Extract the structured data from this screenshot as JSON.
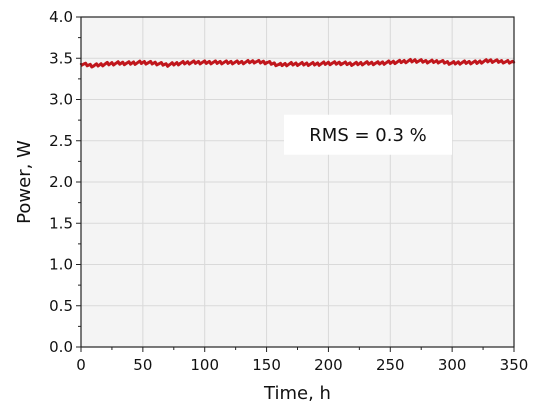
{
  "chart_data": {
    "type": "line",
    "title": "",
    "xlabel": "Time, h",
    "ylabel": "Power, W",
    "xlim": [
      0,
      350
    ],
    "ylim": [
      0.0,
      4.0
    ],
    "xticks": [
      "0",
      "50",
      "100",
      "150",
      "200",
      "250",
      "300",
      "350"
    ],
    "yticks": [
      "0.0",
      "0.5",
      "1.0",
      "1.5",
      "2.0",
      "2.5",
      "3.0",
      "3.5",
      "4.0"
    ],
    "grid": true,
    "annotation": "RMS = 0.3 %",
    "series": [
      {
        "color": "#c0161c",
        "x": [
          0,
          10,
          20,
          30,
          40,
          50,
          60,
          70,
          80,
          90,
          100,
          110,
          120,
          130,
          140,
          150,
          160,
          170,
          180,
          190,
          200,
          210,
          220,
          230,
          240,
          250,
          260,
          270,
          280,
          290,
          300,
          310,
          320,
          330,
          340,
          350
        ],
        "y": [
          3.43,
          3.41,
          3.43,
          3.44,
          3.44,
          3.45,
          3.44,
          3.42,
          3.44,
          3.45,
          3.45,
          3.45,
          3.45,
          3.45,
          3.46,
          3.45,
          3.42,
          3.43,
          3.43,
          3.43,
          3.44,
          3.44,
          3.43,
          3.44,
          3.44,
          3.45,
          3.46,
          3.47,
          3.46,
          3.46,
          3.44,
          3.45,
          3.45,
          3.47,
          3.46,
          3.45
        ]
      }
    ]
  },
  "colors": {
    "plot_background": "#f4f4f4",
    "grid": "#d9d9d9",
    "line": "#c0161c"
  }
}
